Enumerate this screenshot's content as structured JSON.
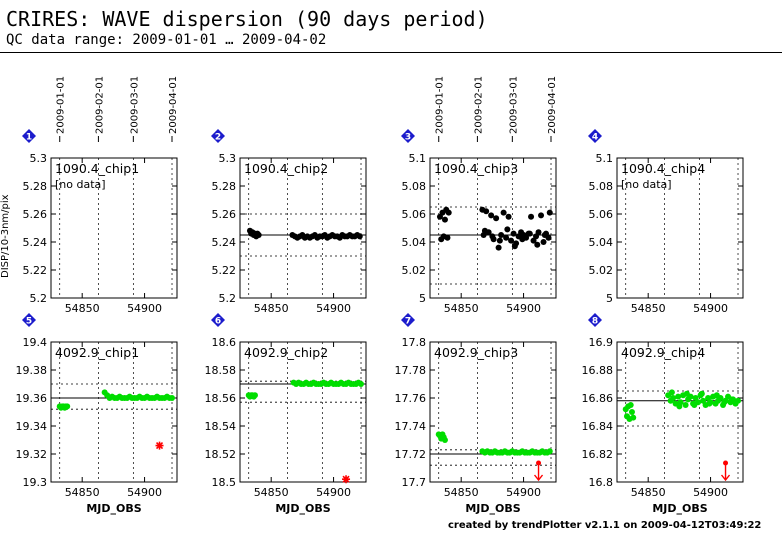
{
  "header": {
    "title": "CRIRES: WAVE dispersion (90 days period)",
    "subtitle": "QC data range: 2009-01-01 … 2009-04-02"
  },
  "footer": {
    "credit": "created by trendPlotter v2.1.1 on 2009-04-12T03:49:22"
  },
  "colors": {
    "ok": "#00dd00",
    "bad": "#ff0000",
    "normal": "#000000",
    "badge": "#1c1ccc",
    "mean_line": "#000000",
    "limit_line": "#000000"
  },
  "chart_data": [
    {
      "type": "scatter",
      "panel_number": "1",
      "label": "1090.4_chip1",
      "note": "[no data]",
      "ylabel": "DISP/10-3nm/pix",
      "xlabel": "",
      "ylim": [
        5.2,
        5.3
      ],
      "yticks": [
        "5.2",
        "5.22",
        "5.24",
        "5.26",
        "5.28",
        "5.3"
      ],
      "xlim": [
        54825,
        54926
      ],
      "xticks": [
        "54850",
        "54900"
      ],
      "date_ticks": [
        "2009-01-01",
        "2009-02-01",
        "2009-03-01",
        "2009-04-01"
      ],
      "mean": null,
      "limits": [],
      "x": [],
      "y": [],
      "color": "normal"
    },
    {
      "type": "scatter",
      "panel_number": "2",
      "label": "1090.4_chip2",
      "note": "",
      "ylabel": "",
      "xlabel": "",
      "ylim": [
        5.2,
        5.3
      ],
      "yticks": [
        "5.2",
        "5.22",
        "5.24",
        "5.26",
        "5.28",
        "5.3"
      ],
      "xlim": [
        54825,
        54926
      ],
      "xticks": [
        "54850",
        "54900"
      ],
      "date_ticks": [],
      "mean": 5.245,
      "limits": [
        5.23,
        5.26
      ],
      "x": [
        54833,
        54834,
        54835,
        54836,
        54837,
        54838,
        54839,
        54840,
        54867,
        54869,
        54871,
        54873,
        54875,
        54877,
        54879,
        54881,
        54883,
        54885,
        54887,
        54889,
        54891,
        54893,
        54895,
        54897,
        54899,
        54901,
        54903,
        54905,
        54907,
        54909,
        54911,
        54913,
        54915,
        54917,
        54919,
        54921
      ],
      "y": [
        5.248,
        5.246,
        5.247,
        5.245,
        5.246,
        5.244,
        5.246,
        5.245,
        5.245,
        5.244,
        5.243,
        5.244,
        5.245,
        5.243,
        5.244,
        5.243,
        5.244,
        5.245,
        5.243,
        5.244,
        5.244,
        5.245,
        5.243,
        5.244,
        5.245,
        5.244,
        5.244,
        5.243,
        5.245,
        5.244,
        5.244,
        5.245,
        5.244,
        5.244,
        5.245,
        5.244
      ],
      "color": "normal"
    },
    {
      "type": "scatter",
      "panel_number": "3",
      "label": "1090.4_chip3",
      "note": "",
      "ylabel": "",
      "xlabel": "",
      "ylim": [
        5.0,
        5.1
      ],
      "yticks": [
        "5",
        "5.02",
        "5.04",
        "5.06",
        "5.08",
        "5.1"
      ],
      "xlim": [
        54825,
        54926
      ],
      "xticks": [
        "54850",
        "54900"
      ],
      "date_ticks": [
        "2009-01-01",
        "2009-02-01",
        "2009-03-01",
        "2009-04-01"
      ],
      "mean": 5.045,
      "limits": [
        5.01,
        5.065
      ],
      "x": [
        54833,
        54834,
        54835,
        54836,
        54837,
        54838,
        54839,
        54840,
        54867,
        54868,
        54870,
        54872,
        54874,
        54876,
        54878,
        54880,
        54882,
        54884,
        54886,
        54888,
        54890,
        54892,
        54894,
        54896,
        54898,
        54900,
        54902,
        54904,
        54906,
        54908,
        54910,
        54912,
        54914,
        54916,
        54918,
        54920,
        54921,
        54869,
        54875,
        54881,
        54887,
        54893,
        54899,
        54905,
        54911,
        54917
      ],
      "y": [
        5.058,
        5.042,
        5.061,
        5.044,
        5.056,
        5.063,
        5.043,
        5.061,
        5.063,
        5.045,
        5.062,
        5.047,
        5.059,
        5.042,
        5.057,
        5.036,
        5.045,
        5.061,
        5.043,
        5.058,
        5.041,
        5.046,
        5.039,
        5.044,
        5.047,
        5.045,
        5.043,
        5.046,
        5.058,
        5.041,
        5.044,
        5.047,
        5.059,
        5.04,
        5.046,
        5.043,
        5.061,
        5.048,
        5.044,
        5.041,
        5.049,
        5.037,
        5.042,
        5.046,
        5.038,
        5.045
      ],
      "color": "normal"
    },
    {
      "type": "scatter",
      "panel_number": "4",
      "label": "1090.4_chip4",
      "note": "[no data]",
      "ylabel": "",
      "xlabel": "",
      "ylim": [
        5.0,
        5.1
      ],
      "yticks": [
        "5",
        "5.02",
        "5.04",
        "5.06",
        "5.08",
        "5.1"
      ],
      "xlim": [
        54825,
        54926
      ],
      "xticks": [
        "54850",
        "54900"
      ],
      "date_ticks": [],
      "mean": null,
      "limits": [],
      "x": [],
      "y": [],
      "color": "normal"
    },
    {
      "type": "scatter",
      "panel_number": "5",
      "label": "4092.9_chip1",
      "note": "",
      "ylabel": "",
      "xlabel": "MJD_OBS",
      "ylim": [
        19.3,
        19.4
      ],
      "yticks": [
        "19.3",
        "19.32",
        "19.34",
        "19.36",
        "19.38",
        "19.4"
      ],
      "xlim": [
        54825,
        54926
      ],
      "xticks": [
        "54850",
        "54900"
      ],
      "date_ticks": [],
      "mean": 19.36,
      "limits": [
        19.352,
        19.37
      ],
      "x": [
        54832,
        54833,
        54834,
        54835,
        54836,
        54837,
        54838,
        54868,
        54870,
        54872,
        54874,
        54876,
        54878,
        54880,
        54882,
        54884,
        54886,
        54888,
        54890,
        54892,
        54894,
        54896,
        54898,
        54900,
        54902,
        54904,
        54906,
        54908,
        54910,
        54912,
        54914,
        54916,
        54918,
        54920,
        54922
      ],
      "y": [
        19.354,
        19.353,
        19.354,
        19.354,
        19.353,
        19.354,
        19.354,
        19.364,
        19.362,
        19.36,
        19.361,
        19.36,
        19.36,
        19.361,
        19.36,
        19.36,
        19.36,
        19.361,
        19.36,
        19.36,
        19.36,
        19.361,
        19.36,
        19.36,
        19.361,
        19.36,
        19.36,
        19.36,
        19.361,
        19.36,
        19.36,
        19.36,
        19.361,
        19.36,
        19.36
      ],
      "color": "ok",
      "bad_points": [
        {
          "x": 54912,
          "y": 19.326
        }
      ]
    },
    {
      "type": "scatter",
      "panel_number": "6",
      "label": "4092.9_chip2",
      "note": "",
      "ylabel": "",
      "xlabel": "MJD_OBS",
      "ylim": [
        18.5,
        18.6
      ],
      "yticks": [
        "18.5",
        "18.52",
        "18.54",
        "18.56",
        "18.58",
        "18.6"
      ],
      "xlim": [
        54825,
        54926
      ],
      "xticks": [
        "54850",
        "54900"
      ],
      "date_ticks": [],
      "mean": 18.57,
      "limits": [
        18.557,
        18.572
      ],
      "x": [
        54832,
        54833,
        54834,
        54835,
        54836,
        54837,
        54868,
        54870,
        54872,
        54874,
        54876,
        54878,
        54880,
        54882,
        54884,
        54886,
        54888,
        54890,
        54892,
        54894,
        54896,
        54898,
        54900,
        54902,
        54904,
        54906,
        54908,
        54910,
        54912,
        54914,
        54916,
        54918,
        54920,
        54922
      ],
      "y": [
        18.562,
        18.561,
        18.562,
        18.562,
        18.561,
        18.562,
        18.571,
        18.57,
        18.571,
        18.57,
        18.57,
        18.571,
        18.57,
        18.57,
        18.571,
        18.57,
        18.57,
        18.57,
        18.571,
        18.57,
        18.57,
        18.571,
        18.57,
        18.57,
        18.57,
        18.571,
        18.57,
        18.57,
        18.571,
        18.57,
        18.57,
        18.57,
        18.571,
        18.57
      ],
      "color": "ok",
      "bad_points": [
        {
          "x": 54910,
          "y": 18.502
        }
      ]
    },
    {
      "type": "scatter",
      "panel_number": "7",
      "label": "4092.9_chip3",
      "note": "",
      "ylabel": "",
      "xlabel": "MJD_OBS",
      "ylim": [
        17.7,
        17.8
      ],
      "yticks": [
        "17.7",
        "17.72",
        "17.74",
        "17.76",
        "17.78",
        "17.8"
      ],
      "xlim": [
        54825,
        54926
      ],
      "xticks": [
        "54850",
        "54900"
      ],
      "date_ticks": [],
      "mean": 17.72,
      "limits": [
        17.712,
        17.723
      ],
      "x": [
        54832,
        54833,
        54834,
        54835,
        54836,
        54837,
        54867,
        54869,
        54871,
        54873,
        54875,
        54877,
        54879,
        54881,
        54883,
        54885,
        54887,
        54889,
        54891,
        54893,
        54895,
        54897,
        54899,
        54901,
        54903,
        54905,
        54907,
        54909,
        54911,
        54913,
        54915,
        54917,
        54919,
        54921
      ],
      "y": [
        17.734,
        17.733,
        17.731,
        17.734,
        17.732,
        17.73,
        17.722,
        17.721,
        17.722,
        17.721,
        17.721,
        17.722,
        17.721,
        17.721,
        17.721,
        17.722,
        17.721,
        17.721,
        17.722,
        17.721,
        17.721,
        17.721,
        17.722,
        17.721,
        17.721,
        17.721,
        17.722,
        17.721,
        17.721,
        17.721,
        17.722,
        17.721,
        17.721,
        17.722
      ],
      "color": "ok",
      "bad_arrows": [
        {
          "x": 54912
        }
      ]
    },
    {
      "type": "scatter",
      "panel_number": "8",
      "label": "4092.9_chip4",
      "note": "",
      "ylabel": "",
      "xlabel": "MJD_OBS",
      "ylim": [
        16.8,
        16.9
      ],
      "yticks": [
        "16.8",
        "16.82",
        "16.84",
        "16.86",
        "16.88",
        "16.9"
      ],
      "xlim": [
        54825,
        54926
      ],
      "xticks": [
        "54850",
        "54900"
      ],
      "date_ticks": [],
      "mean": 16.858,
      "limits": [
        16.84,
        16.865
      ],
      "x": [
        54832,
        54833,
        54834,
        54835,
        54836,
        54837,
        54838,
        54866,
        54868,
        54870,
        54872,
        54874,
        54876,
        54878,
        54880,
        54882,
        54884,
        54886,
        54888,
        54890,
        54892,
        54894,
        54896,
        54898,
        54900,
        54902,
        54904,
        54906,
        54908,
        54910,
        54912,
        54914,
        54916,
        54918,
        54920,
        54922,
        54869,
        54875,
        54881,
        54887,
        54893,
        54899,
        54905,
        54911,
        54917
      ],
      "y": [
        16.852,
        16.847,
        16.854,
        16.845,
        16.855,
        16.85,
        16.846,
        16.862,
        16.858,
        16.86,
        16.856,
        16.861,
        16.857,
        16.862,
        16.855,
        16.859,
        16.861,
        16.856,
        16.86,
        16.857,
        16.862,
        16.858,
        16.855,
        16.86,
        16.857,
        16.861,
        16.856,
        16.858,
        16.86,
        16.855,
        16.858,
        16.861,
        16.857,
        16.859,
        16.856,
        16.858,
        16.864,
        16.854,
        16.863,
        16.855,
        16.863,
        16.856,
        16.862,
        16.857,
        16.859
      ],
      "color": "ok",
      "bad_arrows": [
        {
          "x": 54912
        }
      ]
    }
  ]
}
